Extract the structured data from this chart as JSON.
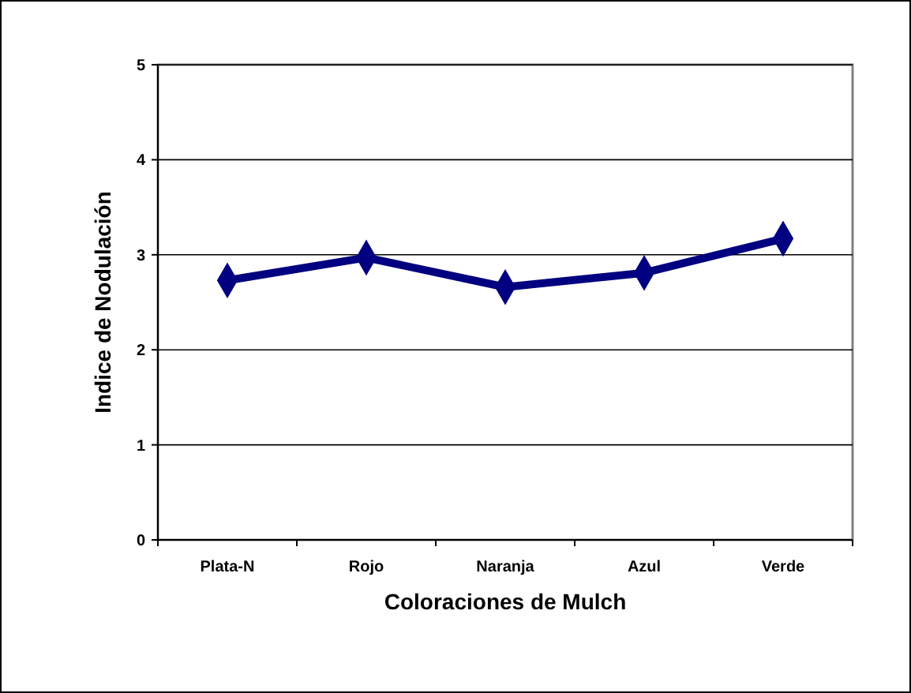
{
  "chart_data": {
    "type": "line",
    "xlabel": "Coloraciones de Mulch",
    "ylabel": "Indice de Nodulación",
    "categories": [
      "Plata-N",
      "Rojo",
      "Naranja",
      "Azul",
      "Verde"
    ],
    "series": [
      {
        "color": "#000080",
        "values": [
          2.73,
          2.97,
          2.66,
          2.81,
          3.17
        ]
      }
    ],
    "ylim": [
      0,
      5
    ],
    "yticks": [
      0,
      1,
      2,
      3,
      4,
      5
    ],
    "grid": "y",
    "marker": "diamond",
    "line_style": "solid"
  }
}
